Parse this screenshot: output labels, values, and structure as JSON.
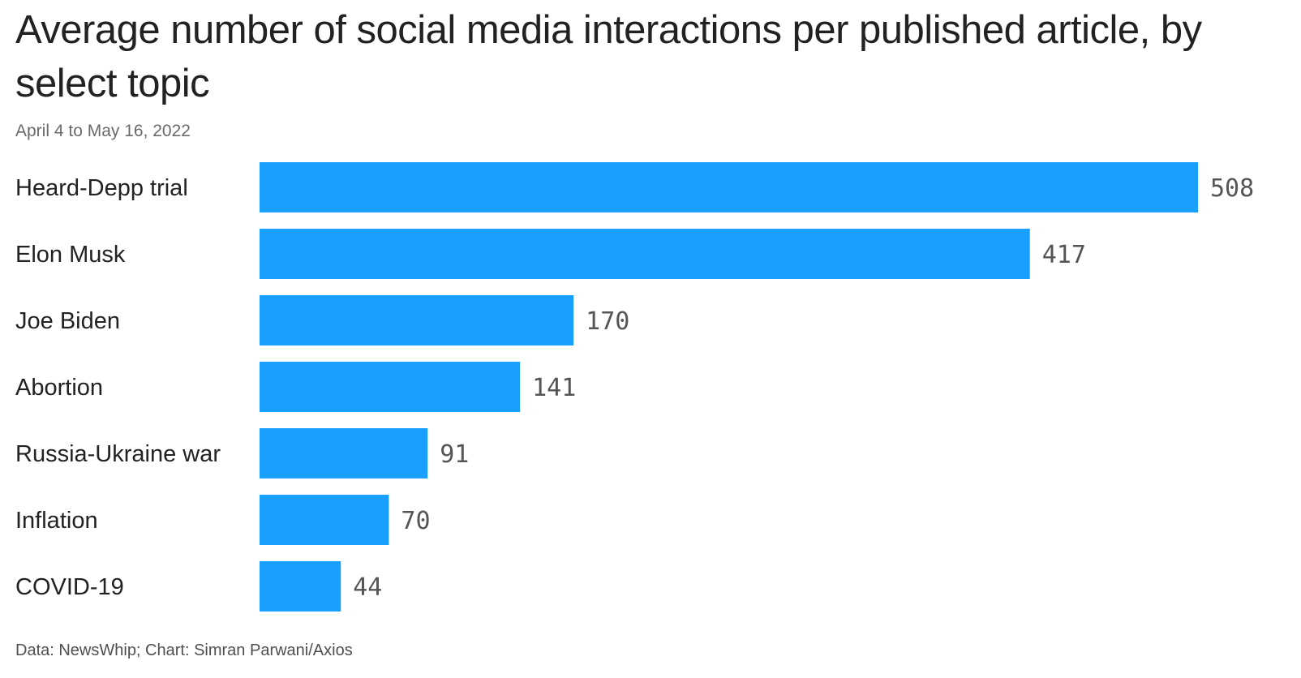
{
  "chart_data": {
    "type": "bar",
    "orientation": "horizontal",
    "title": "Average number of social media interactions per published article, by select topic",
    "subtitle": "April 4 to May 16, 2022",
    "categories": [
      "Heard-Depp trial",
      "Elon Musk",
      "Joe Biden",
      "Abortion",
      "Russia-Ukraine war",
      "Inflation",
      "COVID-19"
    ],
    "values": [
      508,
      417,
      170,
      141,
      91,
      70,
      44
    ],
    "data_labels": [
      "508",
      "417",
      "170",
      "141",
      "91",
      "70",
      "44"
    ],
    "xlabel": "",
    "ylabel": "",
    "xlim": [
      0,
      508
    ],
    "grid": false,
    "legend": "none",
    "bar_color": "#199ffd",
    "source": "Data: NewsWhip; Chart: Simran Parwani/Axios"
  }
}
